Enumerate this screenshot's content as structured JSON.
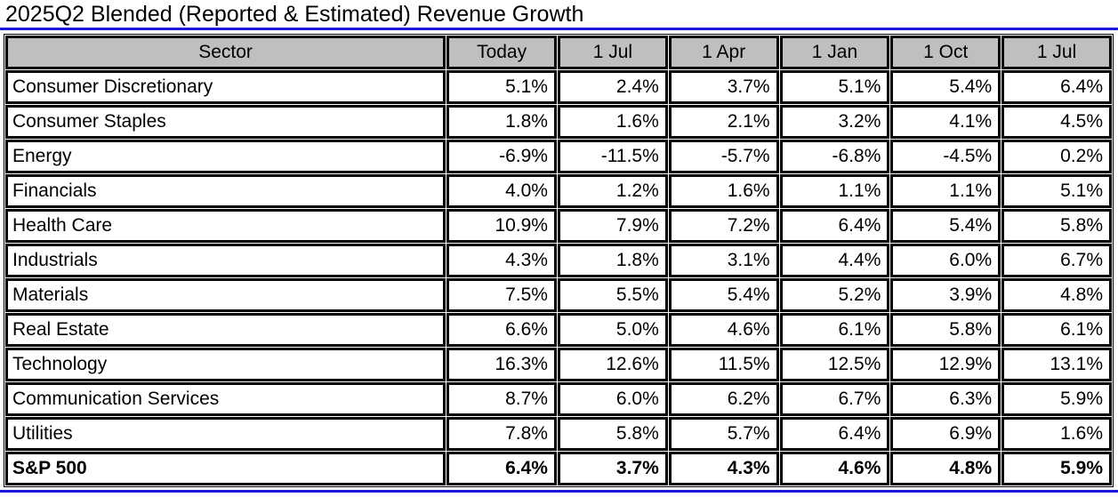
{
  "title": "2025Q2 Blended (Reported & Estimated) Revenue Growth",
  "colors": {
    "accent_blue": "#1a1ad6",
    "header_bg": "#bfbfbf",
    "border": "#000000",
    "text": "#000000",
    "background": "#ffffff"
  },
  "chart_data": {
    "type": "table",
    "title": "2025Q2 Blended (Reported & Estimated) Revenue Growth",
    "columns": [
      "Sector",
      "Today",
      "1 Jul",
      "1 Apr",
      "1 Jan",
      "1 Oct",
      "1 Jul"
    ],
    "rows": [
      {
        "sector": "Consumer Discretionary",
        "values": [
          "5.1%",
          "2.4%",
          "3.7%",
          "5.1%",
          "5.4%",
          "6.4%"
        ],
        "bold": false
      },
      {
        "sector": "Consumer Staples",
        "values": [
          "1.8%",
          "1.6%",
          "2.1%",
          "3.2%",
          "4.1%",
          "4.5%"
        ],
        "bold": false
      },
      {
        "sector": "Energy",
        "values": [
          "-6.9%",
          "-11.5%",
          "-5.7%",
          "-6.8%",
          "-4.5%",
          "0.2%"
        ],
        "bold": false
      },
      {
        "sector": "Financials",
        "values": [
          "4.0%",
          "1.2%",
          "1.6%",
          "1.1%",
          "1.1%",
          "5.1%"
        ],
        "bold": false
      },
      {
        "sector": "Health Care",
        "values": [
          "10.9%",
          "7.9%",
          "7.2%",
          "6.4%",
          "5.4%",
          "5.8%"
        ],
        "bold": false
      },
      {
        "sector": "Industrials",
        "values": [
          "4.3%",
          "1.8%",
          "3.1%",
          "4.4%",
          "6.0%",
          "6.7%"
        ],
        "bold": false
      },
      {
        "sector": "Materials",
        "values": [
          "7.5%",
          "5.5%",
          "5.4%",
          "5.2%",
          "3.9%",
          "4.8%"
        ],
        "bold": false
      },
      {
        "sector": "Real Estate",
        "values": [
          "6.6%",
          "5.0%",
          "4.6%",
          "6.1%",
          "5.8%",
          "6.1%"
        ],
        "bold": false
      },
      {
        "sector": "Technology",
        "values": [
          "16.3%",
          "12.6%",
          "11.5%",
          "12.5%",
          "12.9%",
          "13.1%"
        ],
        "bold": false
      },
      {
        "sector": "Communication Services",
        "values": [
          "8.7%",
          "6.0%",
          "6.2%",
          "6.7%",
          "6.3%",
          "5.9%"
        ],
        "bold": false
      },
      {
        "sector": "Utilities",
        "values": [
          "7.8%",
          "5.8%",
          "5.7%",
          "6.4%",
          "6.9%",
          "1.6%"
        ],
        "bold": false
      },
      {
        "sector": "S&P 500",
        "values": [
          "6.4%",
          "3.7%",
          "4.3%",
          "4.6%",
          "4.8%",
          "5.9%"
        ],
        "bold": true
      }
    ]
  }
}
